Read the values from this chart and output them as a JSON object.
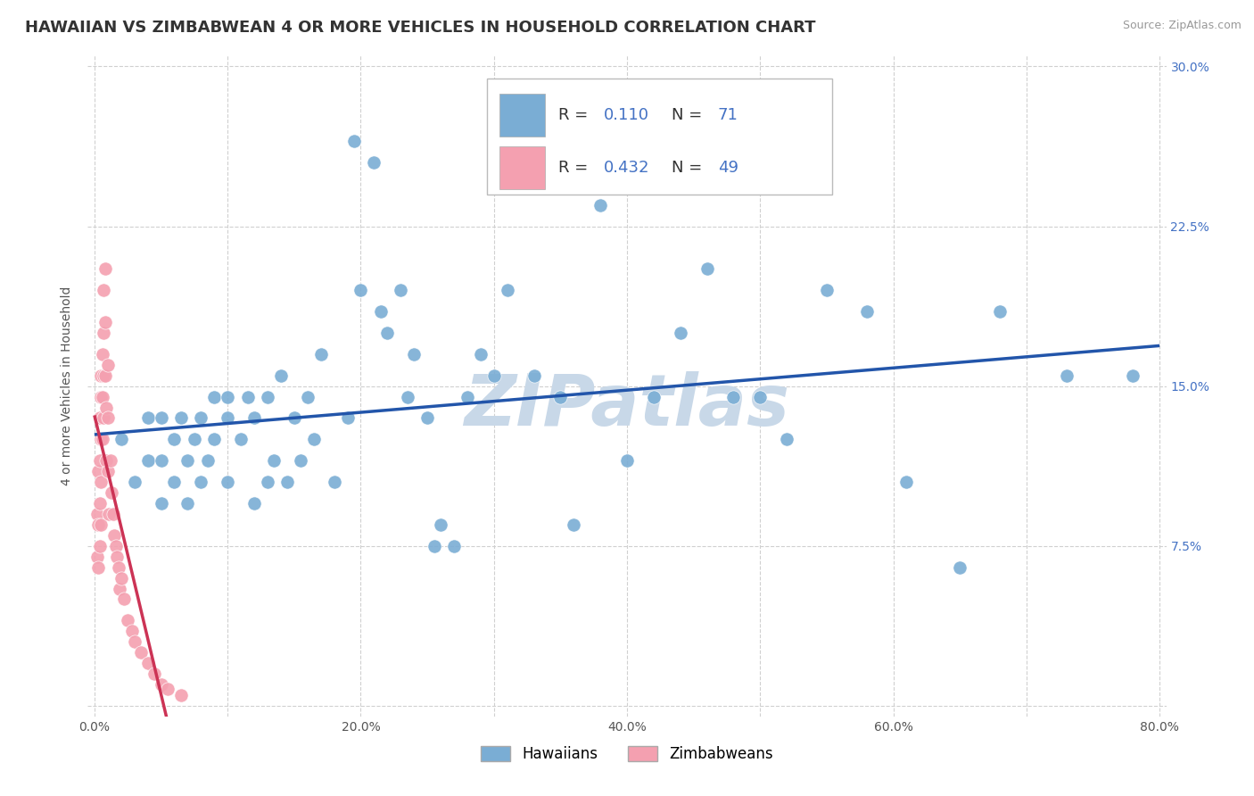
{
  "title": "HAWAIIAN VS ZIMBABWEAN 4 OR MORE VEHICLES IN HOUSEHOLD CORRELATION CHART",
  "source": "Source: ZipAtlas.com",
  "ylabel": "4 or more Vehicles in Household",
  "xlim": [
    -0.005,
    0.805
  ],
  "ylim": [
    -0.005,
    0.305
  ],
  "xticks": [
    0.0,
    0.1,
    0.2,
    0.3,
    0.4,
    0.5,
    0.6,
    0.7,
    0.8
  ],
  "yticks": [
    0.0,
    0.075,
    0.15,
    0.225,
    0.3
  ],
  "xticklabels": [
    "0.0%",
    "",
    "20.0%",
    "",
    "40.0%",
    "",
    "60.0%",
    "",
    "80.0%"
  ],
  "yticklabels_right": [
    "",
    "7.5%",
    "15.0%",
    "22.5%",
    "30.0%"
  ],
  "background_color": "#ffffff",
  "grid_color": "#d0d0d0",
  "watermark": "ZIPatlas",
  "watermark_color": "#c8d8e8",
  "hawaiian_color": "#7aadd4",
  "hawaiian_edge": "#5590c0",
  "zimbabwean_color": "#f4a0b0",
  "zimbabwean_edge": "#e07090",
  "hawaiian_line_color": "#2255aa",
  "zimbabwean_line_color": "#cc3355",
  "legend_R_color": "#4472c4",
  "legend_N_color": "#4472c4",
  "legend_R_hawaiian": "0.110",
  "legend_N_hawaiian": "71",
  "legend_R_zimbabwean": "0.432",
  "legend_N_zimbabwean": "49",
  "hawaiian_x": [
    0.02,
    0.03,
    0.04,
    0.04,
    0.05,
    0.05,
    0.05,
    0.06,
    0.06,
    0.065,
    0.07,
    0.07,
    0.075,
    0.08,
    0.08,
    0.085,
    0.09,
    0.09,
    0.1,
    0.1,
    0.1,
    0.11,
    0.115,
    0.12,
    0.12,
    0.13,
    0.13,
    0.135,
    0.14,
    0.145,
    0.15,
    0.155,
    0.16,
    0.165,
    0.17,
    0.18,
    0.19,
    0.195,
    0.2,
    0.21,
    0.215,
    0.22,
    0.23,
    0.235,
    0.24,
    0.25,
    0.255,
    0.26,
    0.27,
    0.28,
    0.29,
    0.3,
    0.31,
    0.33,
    0.35,
    0.36,
    0.38,
    0.4,
    0.42,
    0.44,
    0.46,
    0.48,
    0.5,
    0.52,
    0.55,
    0.58,
    0.61,
    0.65,
    0.68,
    0.73,
    0.78
  ],
  "hawaiian_y": [
    0.125,
    0.105,
    0.115,
    0.135,
    0.095,
    0.115,
    0.135,
    0.105,
    0.125,
    0.135,
    0.095,
    0.115,
    0.125,
    0.105,
    0.135,
    0.115,
    0.125,
    0.145,
    0.105,
    0.135,
    0.145,
    0.125,
    0.145,
    0.095,
    0.135,
    0.105,
    0.145,
    0.115,
    0.155,
    0.105,
    0.135,
    0.115,
    0.145,
    0.125,
    0.165,
    0.105,
    0.135,
    0.265,
    0.195,
    0.255,
    0.185,
    0.175,
    0.195,
    0.145,
    0.165,
    0.135,
    0.075,
    0.085,
    0.075,
    0.145,
    0.165,
    0.155,
    0.195,
    0.155,
    0.145,
    0.085,
    0.235,
    0.115,
    0.145,
    0.175,
    0.205,
    0.145,
    0.145,
    0.125,
    0.195,
    0.185,
    0.105,
    0.065,
    0.185,
    0.155,
    0.155
  ],
  "zimbabwean_x": [
    0.002,
    0.002,
    0.003,
    0.003,
    0.003,
    0.004,
    0.004,
    0.004,
    0.004,
    0.005,
    0.005,
    0.005,
    0.005,
    0.005,
    0.006,
    0.006,
    0.006,
    0.007,
    0.007,
    0.007,
    0.007,
    0.008,
    0.008,
    0.008,
    0.009,
    0.009,
    0.01,
    0.01,
    0.01,
    0.011,
    0.012,
    0.013,
    0.014,
    0.015,
    0.016,
    0.017,
    0.018,
    0.019,
    0.02,
    0.022,
    0.025,
    0.028,
    0.03,
    0.035,
    0.04,
    0.045,
    0.05,
    0.055,
    0.065
  ],
  "zimbabwean_y": [
    0.09,
    0.07,
    0.11,
    0.085,
    0.065,
    0.135,
    0.115,
    0.095,
    0.075,
    0.155,
    0.145,
    0.125,
    0.105,
    0.085,
    0.165,
    0.145,
    0.125,
    0.195,
    0.175,
    0.155,
    0.135,
    0.205,
    0.18,
    0.155,
    0.14,
    0.115,
    0.16,
    0.135,
    0.11,
    0.09,
    0.115,
    0.1,
    0.09,
    0.08,
    0.075,
    0.07,
    0.065,
    0.055,
    0.06,
    0.05,
    0.04,
    0.035,
    0.03,
    0.025,
    0.02,
    0.015,
    0.01,
    0.008,
    0.005
  ],
  "title_fontsize": 13,
  "axis_label_fontsize": 10,
  "tick_fontsize": 10,
  "legend_fontsize": 13,
  "source_fontsize": 9
}
